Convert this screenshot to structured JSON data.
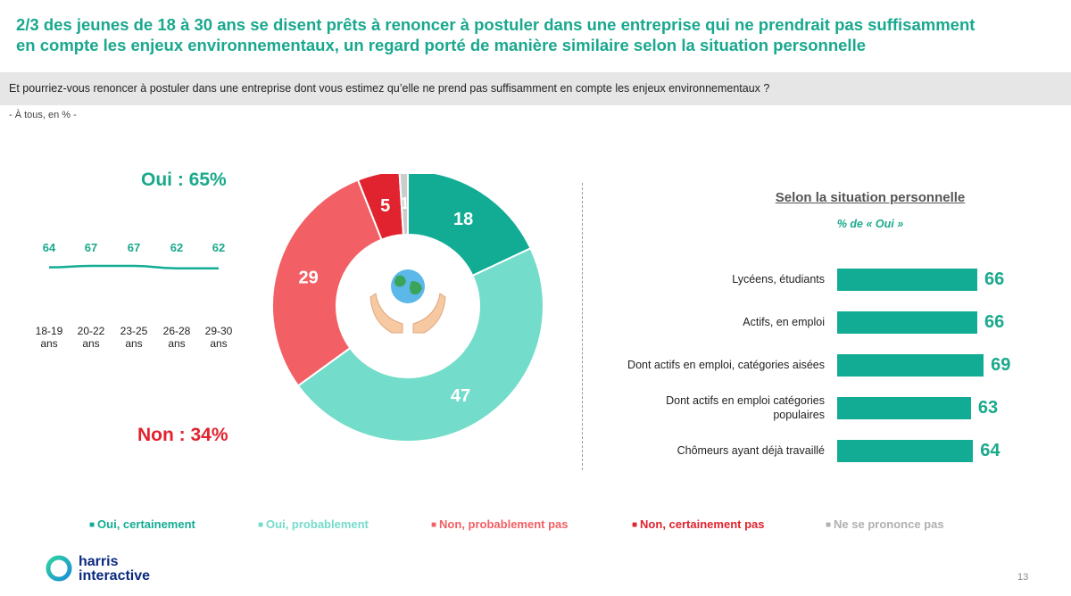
{
  "header": {
    "title_line1": "2/3 des jeunes de 18 à 30 ans se disent prêts à renoncer à postuler dans une entreprise qui ne prendrait pas suffisamment",
    "title_line2": "en compte les enjeux environnementaux, un regard porté de manière similaire selon la situation personnelle",
    "question": "Et pourriez-vous renoncer à postuler dans une entreprise dont vous estimez qu’elle ne prend pas suffisamment en compte les enjeux environnementaux ?",
    "base": "- À tous, en % -"
  },
  "totals": {
    "oui": "Oui : 65%",
    "non": "Non : 34%"
  },
  "colors": {
    "oui_certainement": "#12ac94",
    "oui_probablement": "#74dcca",
    "non_probablement_pas": "#f25f64",
    "non_certainement_pas": "#e0232e",
    "ne_se_prononce_pas": "#cccccc",
    "accent": "#1aa98b"
  },
  "chart_data": [
    {
      "type": "pie",
      "donut": true,
      "center_icon": "earth-in-hands-icon",
      "slices": [
        {
          "label": "Oui, certainement",
          "value": 18
        },
        {
          "label": "Oui, probablement",
          "value": 47
        },
        {
          "label": "Non, probablement pas",
          "value": 29
        },
        {
          "label": "Non, certainement pas",
          "value": 5
        },
        {
          "label": "Ne se prononce pas",
          "value": 1
        }
      ],
      "legend": [
        "Oui, certainement",
        "Oui, probablement",
        "Non, probablement pas",
        "Non, certainement pas",
        "Ne se prononce pas"
      ],
      "legend_position": "bottom"
    },
    {
      "type": "line",
      "categories": [
        [
          "18-19",
          "ans"
        ],
        [
          "20-22",
          "ans"
        ],
        [
          "23-25",
          "ans"
        ],
        [
          "26-28",
          "ans"
        ],
        [
          "29-30",
          "ans"
        ]
      ],
      "values": [
        64,
        67,
        67,
        62,
        62
      ]
    },
    {
      "type": "bar",
      "orientation": "horizontal",
      "title": "Selon la situation personnelle",
      "subtitle": "% de « Oui »",
      "categories": [
        [
          "Lycéens, étudiants"
        ],
        [
          "Actifs, en emploi"
        ],
        [
          "Dont actifs en emploi, catégories aisées"
        ],
        [
          "Dont actifs en emploi catégories",
          "populaires"
        ],
        [
          "Chômeurs ayant déjà travaillé"
        ]
      ],
      "values": [
        66,
        66,
        69,
        63,
        64
      ]
    }
  ],
  "footer": {
    "logo_line1": "harris",
    "logo_line2": "interactive",
    "page_number": "13"
  }
}
